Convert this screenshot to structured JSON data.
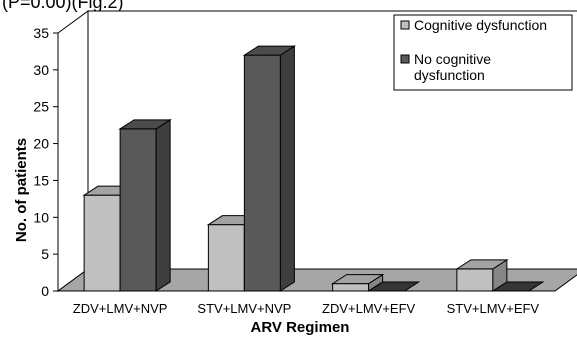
{
  "figure_caption": "(P=0.00)(Fig.2)",
  "chart_data": {
    "type": "bar",
    "title": "",
    "xlabel": "ARV Regimen",
    "ylabel": "No. of patients",
    "categories": [
      "ZDV+LMV+NVP",
      "STV+LMV+NVP",
      "ZDV+LMV+EFV",
      "STV+LMV+EFV"
    ],
    "series": [
      {
        "name": "Cognitive dysfunction",
        "values": [
          13,
          9,
          1,
          3
        ],
        "color": "#c0c0c0"
      },
      {
        "name": "No cognitive dysfunction",
        "values": [
          22,
          32,
          0,
          0
        ],
        "color": "#595959"
      }
    ],
    "ylim": [
      0,
      35
    ],
    "yticks": [
      0,
      5,
      10,
      15,
      20,
      25,
      30,
      35
    ],
    "grid": false,
    "legend_position": "top-right",
    "style": "3d"
  },
  "legend": {
    "items": [
      {
        "lines": [
          "Cognitive dysfunction"
        ]
      },
      {
        "lines": [
          "No cognitive",
          "dysfunction"
        ]
      }
    ]
  }
}
